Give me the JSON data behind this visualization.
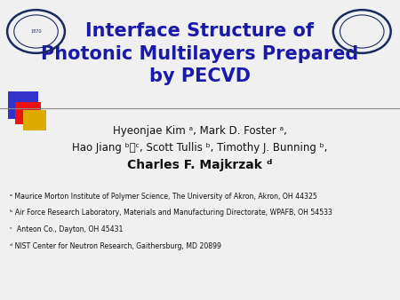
{
  "title_line1": "Interface Structure of",
  "title_line2": "Photonic Multilayers Prepared",
  "title_line3": "by PECVD",
  "title_color": "#1a1aaa",
  "bg_color": "#f0f0f0",
  "author_line1": "Hyeonjae Kim ᵃ, Mark D. Foster ᵃ,",
  "author_line2": "Hao Jiang ᵇⲜᶜ, Scott Tullis ᵇ, Timothy J. Bunning ᵇ,",
  "author_line3": "Charles F. Majkrzak ᵈ",
  "author_color": "#111111",
  "footnote1": "ᵃ Maurice Morton Institute of Polymer Science, The University of Akron, Akron, OH 44325",
  "footnote2": "ᵇ Air Force Research Laboratory, Materials and Manufacturing Directorate, WPAFB, OH 54533",
  "footnote3": "ᶜ  Anteon Co., Dayton, OH 45431",
  "footnote4": "ᵈ NIST Center for Neutron Research, Gaithersburg, MD 20899",
  "footnote_color": "#111111",
  "line_color": "#888888",
  "square_blue": "#3333cc",
  "square_red": "#ee1111",
  "square_yellow": "#ddaa00",
  "title_fs": 15,
  "author_fs1": 8.5,
  "author_fs3": 10,
  "footnote_fs": 5.6
}
